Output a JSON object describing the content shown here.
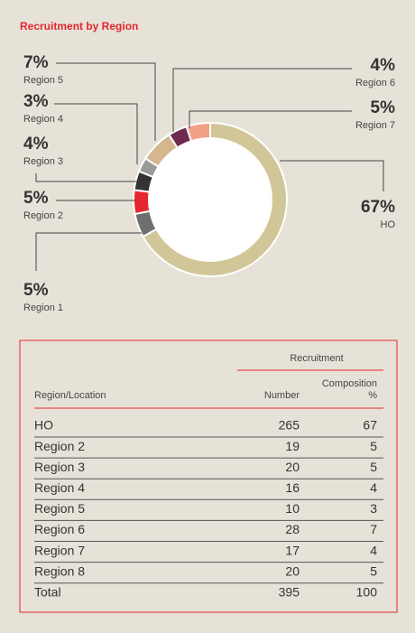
{
  "chart_data": {
    "type": "pie",
    "title": "Recruitment by Region",
    "categories": [
      "HO",
      "Region 1",
      "Region 2",
      "Region 3",
      "Region 4",
      "Region 5",
      "Region 6",
      "Region 7"
    ],
    "values": [
      67,
      5,
      5,
      4,
      3,
      7,
      4,
      5
    ],
    "value_labels": [
      "67%",
      "5%",
      "5%",
      "4%",
      "3%",
      "7%",
      "4%",
      "5%"
    ],
    "colors": [
      "#d1c697",
      "#6f6f6f",
      "#e5262e",
      "#333333",
      "#9a9a9a",
      "#d6b68e",
      "#6d2a4e",
      "#f3a088"
    ],
    "donut": true
  },
  "table": {
    "group_header": "Recruitment",
    "columns": [
      "Region/Location",
      "Number",
      "Composition %"
    ],
    "rows": [
      [
        "HO",
        "265",
        "67"
      ],
      [
        "Region 2",
        "19",
        "5"
      ],
      [
        "Region 3",
        "20",
        "5"
      ],
      [
        "Region 4",
        "16",
        "4"
      ],
      [
        "Region 5",
        "10",
        "3"
      ],
      [
        "Region 6",
        "28",
        "7"
      ],
      [
        "Region 7",
        "17",
        "4"
      ],
      [
        "Region 8",
        "20",
        "5"
      ],
      [
        "Total",
        "395",
        "100"
      ]
    ]
  }
}
